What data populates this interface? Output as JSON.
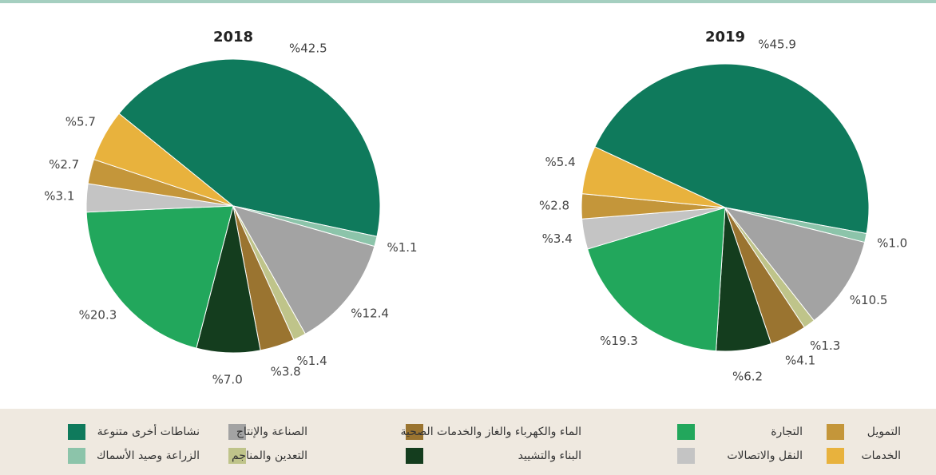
{
  "legend": {
    "categories": [
      "نشاطات أخرى متنوعة",
      "الزراعة وصيد الأسماك",
      "الصناعة والإنتاج",
      "التعدين والمناجم",
      "الماء والكهرباء والغاز والخدمات الصحية",
      "البناء والتشييد",
      "التجارة",
      "النقل والاتصالات",
      "التمويل",
      "الخدمات"
    ],
    "colors": [
      "#0f7a5c",
      "#8cc4aa",
      "#a3a3a3",
      "#bfc48a",
      "#9a7430",
      "#143d1e",
      "#22a75c",
      "#c4c4c4",
      "#c4963a",
      "#e8b23d"
    ]
  },
  "chart_data": [
    {
      "type": "pie",
      "title": "2018",
      "values": [
        42.5,
        1.1,
        12.4,
        1.4,
        3.8,
        7.0,
        20.3,
        3.1,
        2.7,
        5.7
      ],
      "value_labels": [
        "%42.5",
        "%1.1",
        "%12.4",
        "%1.4",
        "%3.8",
        "%7.0",
        "%20.3",
        "%3.1",
        "%2.7",
        "%5.7"
      ]
    },
    {
      "type": "pie",
      "title": "2019",
      "values": [
        45.9,
        1.0,
        10.5,
        1.3,
        4.1,
        6.2,
        19.3,
        3.4,
        2.8,
        5.4
      ],
      "value_labels": [
        "%45.9",
        "%1.0",
        "%10.5",
        "%1.3",
        "%4.1",
        "%6.2",
        "%19.3",
        "%3.4",
        "%2.8",
        "%5.4"
      ]
    }
  ]
}
